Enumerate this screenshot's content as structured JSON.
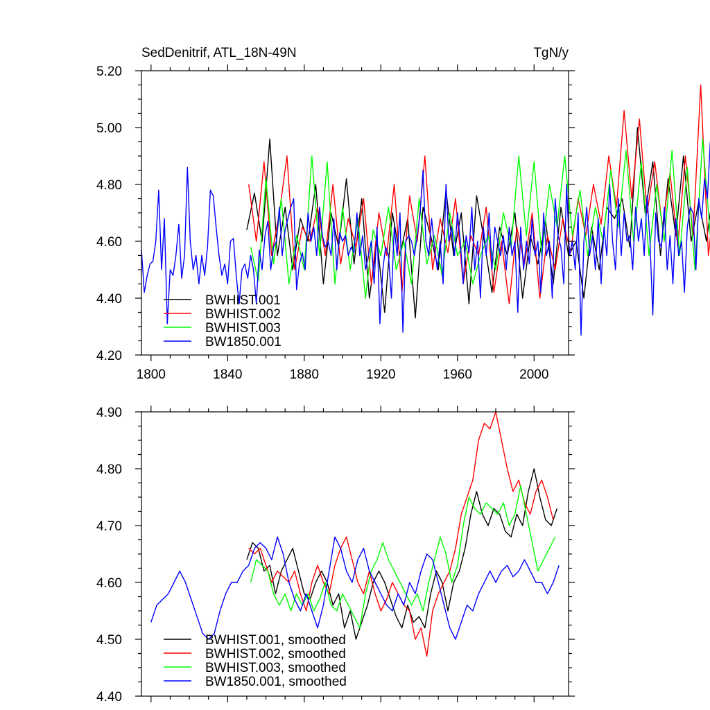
{
  "chart_data": [
    {
      "type": "line",
      "title": "SedDenitrif, ATL_18N-49N",
      "units": "TgN/y",
      "xlim": [
        1795,
        2018
      ],
      "ylim": [
        4.2,
        5.2
      ],
      "xticks": [
        1800,
        1840,
        1880,
        1920,
        1960,
        2000
      ],
      "yticks": [
        "4.20",
        "4.40",
        "4.60",
        "4.80",
        "5.00",
        "5.20"
      ],
      "legend_position": "bottom-left",
      "series": [
        {
          "name": "BWHIST.001",
          "color": "#000000",
          "x_start": 1850,
          "step": 4,
          "values": [
            4.64,
            4.77,
            4.6,
            4.96,
            4.55,
            4.72,
            4.5,
            4.68,
            4.6,
            4.8,
            4.45,
            4.7,
            4.58,
            4.82,
            4.52,
            4.75,
            4.4,
            4.6,
            4.35,
            4.7,
            4.55,
            4.68,
            4.33,
            4.72,
            4.62,
            4.5,
            4.78,
            4.55,
            4.7,
            4.38,
            4.76,
            4.6,
            4.42,
            4.65,
            4.55,
            4.7,
            4.4,
            4.62,
            4.52,
            4.67,
            4.45,
            4.72,
            4.55,
            4.6,
            4.4,
            4.65,
            4.5,
            4.72,
            4.68,
            4.75,
            4.58,
            5.0,
            4.7,
            4.88,
            4.55,
            4.82,
            4.62,
            4.9,
            4.6,
            4.74,
            4.6,
            4.8,
            4.5,
            4.75,
            4.65,
            4.82,
            4.56,
            4.9,
            4.62,
            4.82
          ]
        },
        {
          "name": "BWHIST.002",
          "color": "#ff0000",
          "x_start": 1851,
          "step": 4,
          "values": [
            4.8,
            4.6,
            4.88,
            4.55,
            4.7,
            4.9,
            4.5,
            4.65,
            4.6,
            4.72,
            4.55,
            4.8,
            4.52,
            4.68,
            4.58,
            4.75,
            4.45,
            4.7,
            4.55,
            4.8,
            4.42,
            4.76,
            4.6,
            4.9,
            4.5,
            4.68,
            4.56,
            4.75,
            4.45,
            4.62,
            4.55,
            4.72,
            4.42,
            4.6,
            4.38,
            4.65,
            4.52,
            4.7,
            4.4,
            4.62,
            4.5,
            4.68,
            4.56,
            4.75,
            4.62,
            4.8,
            4.66,
            4.9,
            4.72,
            5.06,
            4.75,
            5.03,
            4.7,
            4.88,
            4.65,
            4.84,
            4.58,
            4.9,
            4.62,
            5.15,
            4.55,
            4.8,
            4.6,
            4.9,
            4.52,
            4.8
          ]
        },
        {
          "name": "BWHIST.003",
          "color": "#00ff00",
          "x_start": 1852,
          "step": 4,
          "values": [
            4.58,
            4.46,
            4.82,
            4.52,
            4.75,
            4.45,
            4.62,
            4.5,
            4.9,
            4.55,
            4.88,
            4.45,
            4.72,
            4.5,
            4.68,
            4.4,
            4.64,
            4.55,
            4.72,
            4.5,
            4.6,
            4.45,
            4.75,
            4.52,
            4.62,
            4.48,
            4.7,
            4.55,
            4.6,
            4.45,
            4.55,
            4.62,
            4.5,
            4.7,
            4.58,
            4.9,
            4.62,
            4.88,
            4.55,
            4.8,
            4.65,
            4.9,
            4.62,
            4.78,
            4.55,
            4.72,
            4.6,
            4.85,
            4.65,
            4.92,
            4.6,
            4.88,
            4.55,
            4.8,
            4.6,
            4.92,
            4.55,
            4.86,
            4.5,
            4.96,
            4.62,
            4.8
          ]
        },
        {
          "name": "BW1850.001",
          "color": "#0000ff",
          "x_start": 1795,
          "step": 1.5,
          "values": [
            4.57,
            4.42,
            4.48,
            4.52,
            4.53,
            4.6,
            4.78,
            4.5,
            4.68,
            4.31,
            4.5,
            4.48,
            4.55,
            4.66,
            4.47,
            4.55,
            4.86,
            4.6,
            4.5,
            4.55,
            4.45,
            4.55,
            4.48,
            4.58,
            4.78,
            4.76,
            4.65,
            4.55,
            4.48,
            4.52,
            4.45,
            4.6,
            4.61,
            4.48,
            4.38,
            4.5,
            4.52,
            4.47,
            4.55,
            4.5,
            4.38,
            4.57,
            4.5,
            4.62,
            4.67,
            4.5,
            4.58,
            4.6,
            4.72,
            4.55,
            4.64,
            4.68,
            4.72,
            4.75,
            4.43,
            4.52,
            4.56,
            4.5,
            4.7,
            4.6,
            4.65,
            4.55,
            4.72,
            4.62,
            4.58,
            4.6,
            4.55,
            4.68,
            4.5,
            4.63,
            4.6,
            4.62,
            4.55,
            4.58,
            4.56,
            4.7,
            4.55,
            4.62,
            4.5,
            4.55,
            4.6,
            4.45,
            4.65,
            4.31,
            4.5,
            4.58,
            4.55,
            4.4,
            4.65,
            4.55,
            4.7,
            4.28,
            4.6,
            4.62,
            4.6,
            4.55,
            4.62,
            4.7,
            4.85,
            4.6,
            4.55,
            4.68,
            4.58,
            4.5,
            4.6,
            4.45,
            4.8,
            4.6,
            4.65,
            4.55,
            4.7,
            4.6,
            4.45,
            4.62,
            4.56,
            4.72,
            4.5,
            4.6,
            4.4,
            4.65,
            4.55,
            4.7,
            4.5,
            4.65,
            4.6,
            4.55,
            4.62,
            4.5,
            4.65,
            4.55,
            4.6,
            4.35,
            4.65,
            4.5,
            4.6,
            4.52,
            4.68,
            4.55,
            4.6,
            4.42,
            4.7,
            4.55,
            4.6,
            4.4,
            4.75,
            4.62,
            4.58,
            4.45,
            4.8,
            4.55,
            4.6,
            4.5,
            4.7,
            4.27,
            4.6,
            4.72,
            4.55,
            4.62,
            4.5,
            4.68,
            4.45,
            4.65,
            4.55,
            4.8,
            4.6,
            4.5,
            4.75,
            4.55,
            4.7,
            4.6,
            4.62,
            4.5,
            4.72,
            4.6,
            4.68,
            4.55,
            4.76,
            4.6,
            4.34,
            4.7,
            4.6,
            4.58,
            4.72,
            4.5,
            4.62,
            4.45,
            4.68,
            4.55,
            4.6,
            4.42,
            4.65,
            4.72,
            4.7,
            4.5,
            4.75,
            4.68,
            4.82,
            4.75,
            4.95
          ]
        }
      ]
    },
    {
      "type": "line",
      "xlim": [
        1795,
        2018
      ],
      "ylim": [
        4.4,
        4.9
      ],
      "xticks": [
        1800,
        1840,
        1880,
        1920,
        1960,
        2000
      ],
      "yticks": [
        "4.40",
        "4.50",
        "4.60",
        "4.70",
        "4.80",
        "4.90"
      ],
      "legend_position": "bottom-left",
      "series": [
        {
          "name": "BWHIST.001, smoothed",
          "color": "#000000",
          "x": [
            1850,
            1853,
            1856,
            1859,
            1862,
            1865,
            1868,
            1871,
            1874,
            1877,
            1880,
            1883,
            1886,
            1889,
            1892,
            1895,
            1898,
            1901,
            1904,
            1907,
            1910,
            1913,
            1916,
            1919,
            1922,
            1925,
            1928,
            1931,
            1934,
            1937,
            1940,
            1943,
            1946,
            1949,
            1952,
            1955,
            1958,
            1961,
            1964,
            1967,
            1970,
            1973,
            1976,
            1979,
            1982,
            1985,
            1988,
            1991,
            1994,
            1997,
            2000,
            2003,
            2006,
            2009,
            2012
          ],
          "values": [
            4.64,
            4.67,
            4.66,
            4.62,
            4.63,
            4.58,
            4.62,
            4.64,
            4.66,
            4.62,
            4.58,
            4.57,
            4.6,
            4.62,
            4.6,
            4.56,
            4.58,
            4.52,
            4.55,
            4.5,
            4.53,
            4.56,
            4.6,
            4.62,
            4.6,
            4.57,
            4.54,
            4.52,
            4.56,
            4.53,
            4.54,
            4.52,
            4.58,
            4.62,
            4.6,
            4.55,
            4.6,
            4.62,
            4.66,
            4.72,
            4.76,
            4.72,
            4.7,
            4.73,
            4.72,
            4.69,
            4.68,
            4.72,
            4.7,
            4.76,
            4.8,
            4.75,
            4.71,
            4.7,
            4.73
          ]
        },
        {
          "name": "BWHIST.002, smoothed",
          "color": "#ff0000",
          "x": [
            1851,
            1854,
            1857,
            1860,
            1863,
            1866,
            1869,
            1872,
            1875,
            1878,
            1881,
            1884,
            1887,
            1890,
            1893,
            1896,
            1899,
            1902,
            1905,
            1908,
            1911,
            1914,
            1917,
            1920,
            1923,
            1926,
            1929,
            1932,
            1935,
            1938,
            1941,
            1944,
            1947,
            1950,
            1953,
            1956,
            1959,
            1962,
            1965,
            1968,
            1971,
            1974,
            1977,
            1980,
            1983,
            1986,
            1989,
            1992,
            1995,
            1998,
            2001,
            2004,
            2007,
            2010
          ],
          "values": [
            4.66,
            4.65,
            4.66,
            4.63,
            4.6,
            4.62,
            4.61,
            4.6,
            4.62,
            4.58,
            4.55,
            4.6,
            4.63,
            4.6,
            4.58,
            4.63,
            4.66,
            4.68,
            4.64,
            4.6,
            4.58,
            4.62,
            4.58,
            4.55,
            4.57,
            4.6,
            4.58,
            4.56,
            4.55,
            4.5,
            4.52,
            4.47,
            4.55,
            4.58,
            4.6,
            4.62,
            4.66,
            4.72,
            4.75,
            4.78,
            4.85,
            4.88,
            4.87,
            4.9,
            4.85,
            4.8,
            4.76,
            4.78,
            4.74,
            4.72,
            4.76,
            4.78,
            4.75,
            4.71
          ]
        },
        {
          "name": "BWHIST.003, smoothed",
          "color": "#00ff00",
          "x": [
            1852,
            1855,
            1858,
            1861,
            1864,
            1867,
            1870,
            1873,
            1876,
            1879,
            1882,
            1885,
            1888,
            1891,
            1894,
            1897,
            1900,
            1903,
            1906,
            1909,
            1912,
            1915,
            1918,
            1921,
            1924,
            1927,
            1930,
            1933,
            1936,
            1939,
            1942,
            1945,
            1948,
            1951,
            1954,
            1957,
            1960,
            1963,
            1966,
            1969,
            1972,
            1975,
            1978,
            1981,
            1984,
            1987,
            1990,
            1993,
            1996,
            1999,
            2002,
            2005,
            2008,
            2011
          ],
          "values": [
            4.6,
            4.64,
            4.63,
            4.62,
            4.58,
            4.56,
            4.58,
            4.55,
            4.58,
            4.56,
            4.58,
            4.55,
            4.57,
            4.6,
            4.56,
            4.55,
            4.58,
            4.56,
            4.54,
            4.52,
            4.58,
            4.62,
            4.64,
            4.67,
            4.64,
            4.62,
            4.6,
            4.58,
            4.56,
            4.58,
            4.55,
            4.6,
            4.64,
            4.68,
            4.65,
            4.6,
            4.63,
            4.7,
            4.75,
            4.73,
            4.72,
            4.74,
            4.73,
            4.72,
            4.74,
            4.7,
            4.72,
            4.77,
            4.72,
            4.67,
            4.62,
            4.64,
            4.66,
            4.68
          ]
        },
        {
          "name": "BW1850.001, smoothed",
          "color": "#0000ff",
          "x": [
            1800,
            1803,
            1806,
            1809,
            1812,
            1815,
            1818,
            1821,
            1824,
            1827,
            1830,
            1833,
            1836,
            1839,
            1842,
            1845,
            1848,
            1851,
            1854,
            1857,
            1860,
            1863,
            1866,
            1869,
            1872,
            1875,
            1878,
            1881,
            1884,
            1887,
            1890,
            1893,
            1896,
            1899,
            1902,
            1905,
            1908,
            1911,
            1914,
            1917,
            1920,
            1923,
            1926,
            1929,
            1932,
            1935,
            1938,
            1941,
            1944,
            1947,
            1950,
            1953,
            1956,
            1959,
            1962,
            1965,
            1968,
            1971,
            1974,
            1977,
            1980,
            1983,
            1986,
            1989,
            1992,
            1995,
            1998,
            2001,
            2004,
            2007,
            2010,
            2013
          ],
          "values": [
            4.53,
            4.56,
            4.57,
            4.58,
            4.6,
            4.62,
            4.6,
            4.57,
            4.54,
            4.51,
            4.5,
            4.51,
            4.55,
            4.58,
            4.6,
            4.6,
            4.62,
            4.63,
            4.66,
            4.67,
            4.66,
            4.64,
            4.68,
            4.65,
            4.6,
            4.57,
            4.55,
            4.58,
            4.55,
            4.52,
            4.56,
            4.62,
            4.68,
            4.66,
            4.62,
            4.6,
            4.64,
            4.66,
            4.62,
            4.6,
            4.58,
            4.56,
            4.55,
            4.58,
            4.56,
            4.6,
            4.58,
            4.62,
            4.65,
            4.64,
            4.6,
            4.56,
            4.52,
            4.5,
            4.53,
            4.56,
            4.55,
            4.58,
            4.6,
            4.62,
            4.6,
            4.62,
            4.63,
            4.61,
            4.62,
            4.64,
            4.62,
            4.6,
            4.6,
            4.58,
            4.6,
            4.63
          ]
        }
      ]
    }
  ]
}
